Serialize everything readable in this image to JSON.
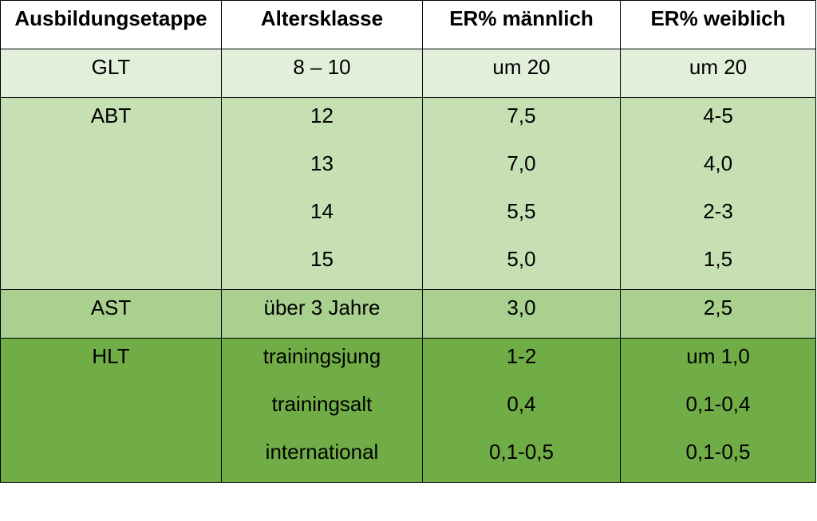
{
  "table": {
    "headers": [
      "Ausbildungsetappe",
      "Altersklasse",
      "ER% männlich",
      "ER% weiblich"
    ],
    "rows": [
      {
        "stage": "GLT",
        "age": [
          "8 – 10"
        ],
        "male": [
          "um 20"
        ],
        "female": [
          "um 20"
        ],
        "color": "#e2efda"
      },
      {
        "stage": "ABT",
        "age": [
          "12",
          "13",
          "14",
          "15"
        ],
        "male": [
          "7,5",
          "7,0",
          "5,5",
          "5,0"
        ],
        "female": [
          "4-5",
          "4,0",
          "2-3",
          "1,5"
        ],
        "color": "#c6e0b4"
      },
      {
        "stage": "AST",
        "age": [
          "über 3 Jahre"
        ],
        "male": [
          "3,0"
        ],
        "female": [
          "2,5"
        ],
        "color": "#a9d08e"
      },
      {
        "stage": "HLT",
        "age": [
          "trainingsjung",
          "trainingsalt",
          "international"
        ],
        "male": [
          "1-2",
          "0,4",
          "0,1-0,5"
        ],
        "female": [
          "um 1,0",
          "0,1-0,4",
          "0,1-0,5"
        ],
        "color": "#70ad47"
      }
    ]
  }
}
